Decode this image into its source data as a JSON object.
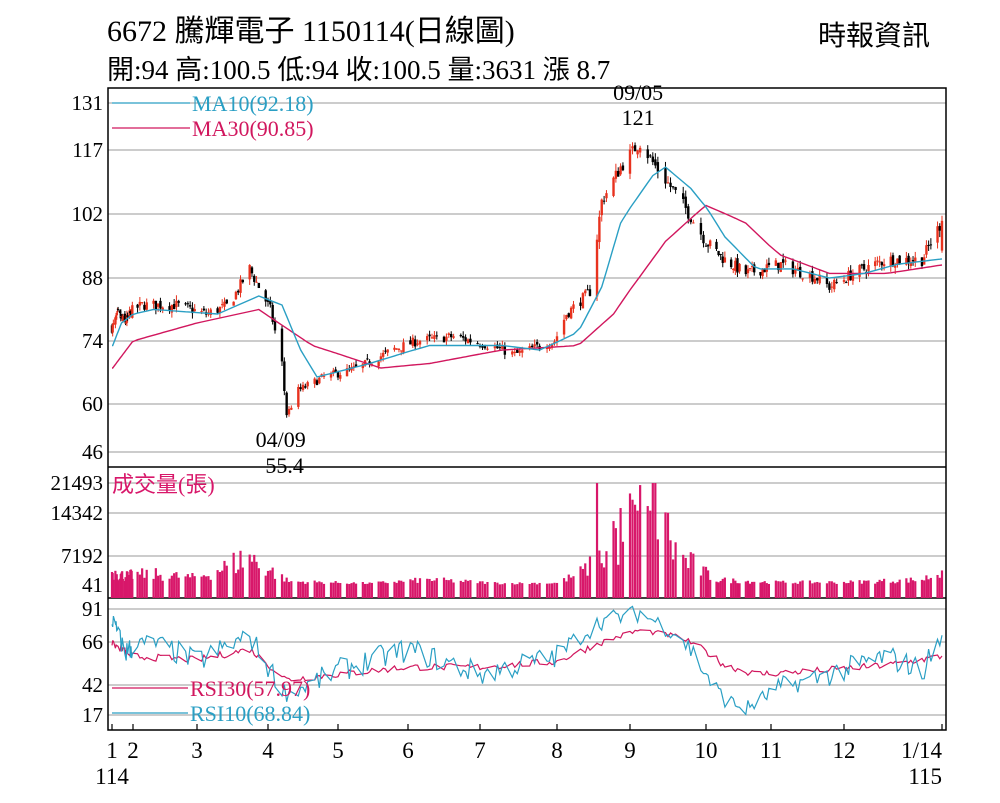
{
  "header": {
    "title": "6672  騰輝電子 1150114(日線圖)",
    "source": "時報資訊",
    "summary": "開:94 高:100.5 低:94 收:100.5 量:3631 漲 8.7"
  },
  "colors": {
    "up": "#e8321e",
    "down": "#000000",
    "ma10": "#2a9fc4",
    "ma30": "#d1175e",
    "volume": "#d8176a",
    "rsi30": "#d1175e",
    "rsi10": "#2a9fc4",
    "grid": "#999999"
  },
  "chart_data": [
    {
      "type": "candlestick",
      "legend": [
        {
          "name": "MA10(92.18)",
          "color": "ma10"
        },
        {
          "name": "MA30(90.85)",
          "color": "ma30"
        }
      ],
      "y_ticks": [
        "131",
        "117",
        "102",
        "88",
        "74",
        "60",
        "46"
      ],
      "ylim": [
        46,
        131
      ],
      "annotations": [
        {
          "label_date": "09/05",
          "label_value": "121",
          "date": "2025-09-05",
          "value": 121,
          "position": "above"
        },
        {
          "label_date": "04/09",
          "label_value": "55.4",
          "date": "2025-04-09",
          "value": 55.4,
          "position": "below"
        }
      ],
      "price_path": [
        [
          "2025-01-02",
          77
        ],
        [
          "2025-01-10",
          80
        ],
        [
          "2025-01-20",
          78
        ],
        [
          "2025-02-05",
          82
        ],
        [
          "2025-02-20",
          82
        ],
        [
          "2025-03-05",
          80
        ],
        [
          "2025-03-15",
          82
        ],
        [
          "2025-03-24",
          90
        ],
        [
          "2025-04-02",
          81
        ],
        [
          "2025-04-07",
          69
        ],
        [
          "2025-04-09",
          57
        ],
        [
          "2025-04-14",
          63
        ],
        [
          "2025-04-25",
          66
        ],
        [
          "2025-05-10",
          68
        ],
        [
          "2025-05-25",
          72
        ],
        [
          "2025-06-05",
          74
        ],
        [
          "2025-06-20",
          75
        ],
        [
          "2025-07-05",
          73
        ],
        [
          "2025-07-15",
          71
        ],
        [
          "2025-07-31",
          74
        ],
        [
          "2025-08-05",
          80
        ],
        [
          "2025-08-15",
          85
        ],
        [
          "2025-08-20",
          105
        ],
        [
          "2025-08-28",
          113
        ],
        [
          "2025-09-05",
          119
        ],
        [
          "2025-09-10",
          114
        ],
        [
          "2025-09-20",
          106
        ],
        [
          "2025-10-01",
          96
        ],
        [
          "2025-10-10",
          92
        ],
        [
          "2025-10-20",
          89
        ],
        [
          "2025-11-05",
          91
        ],
        [
          "2025-11-20",
          88
        ],
        [
          "2025-11-25",
          86
        ],
        [
          "2025-12-05",
          89
        ],
        [
          "2025-12-20",
          92
        ],
        [
          "2026-01-05",
          92
        ],
        [
          "2026-01-14",
          100.5
        ]
      ],
      "ma10_path": [
        [
          "2025-01-02",
          73
        ],
        [
          "2025-01-15",
          78
        ],
        [
          "2025-02-10",
          81
        ],
        [
          "2025-03-10",
          80
        ],
        [
          "2025-03-28",
          84
        ],
        [
          "2025-04-07",
          82
        ],
        [
          "2025-04-15",
          72
        ],
        [
          "2025-04-22",
          66
        ],
        [
          "2025-05-15",
          69
        ],
        [
          "2025-06-10",
          73
        ],
        [
          "2025-07-10",
          73
        ],
        [
          "2025-07-25",
          72
        ],
        [
          "2025-08-10",
          76
        ],
        [
          "2025-08-20",
          86
        ],
        [
          "2025-08-28",
          100
        ],
        [
          "2025-09-10",
          111
        ],
        [
          "2025-09-15",
          113
        ],
        [
          "2025-09-25",
          108
        ],
        [
          "2025-10-10",
          97
        ],
        [
          "2025-10-25",
          90
        ],
        [
          "2025-11-10",
          90
        ],
        [
          "2025-11-25",
          88
        ],
        [
          "2025-12-10",
          89
        ],
        [
          "2025-12-25",
          91
        ],
        [
          "2026-01-14",
          92.18
        ]
      ],
      "ma30_path": [
        [
          "2025-01-02",
          68
        ],
        [
          "2025-02-01",
          74
        ],
        [
          "2025-03-01",
          78
        ],
        [
          "2025-03-28",
          81
        ],
        [
          "2025-04-20",
          73
        ],
        [
          "2025-05-20",
          68
        ],
        [
          "2025-06-10",
          69
        ],
        [
          "2025-07-10",
          72
        ],
        [
          "2025-08-10",
          73
        ],
        [
          "2025-08-25",
          80
        ],
        [
          "2025-09-15",
          96
        ],
        [
          "2025-10-01",
          104
        ],
        [
          "2025-10-20",
          100
        ],
        [
          "2025-11-05",
          93
        ],
        [
          "2025-11-25",
          89
        ],
        [
          "2025-12-20",
          89
        ],
        [
          "2026-01-14",
          90.85
        ]
      ]
    },
    {
      "type": "bar",
      "legend": [
        {
          "name": "成交量(張)",
          "color": "volume"
        }
      ],
      "y_ticks": [
        "21493",
        "14342",
        "7192",
        "41"
      ],
      "ylim": [
        41,
        21493
      ],
      "volume_path": [
        [
          "2025-01-02",
          3500
        ],
        [
          "2025-01-20",
          2500
        ],
        [
          "2025-02-10",
          3000
        ],
        [
          "2025-03-01",
          2000
        ],
        [
          "2025-03-24",
          7500
        ],
        [
          "2025-04-10",
          1000
        ],
        [
          "2025-05-15",
          500
        ],
        [
          "2025-06-10",
          1500
        ],
        [
          "2025-07-10",
          500
        ],
        [
          "2025-08-01",
          600
        ],
        [
          "2025-08-10",
          3000
        ],
        [
          "2025-08-20",
          7000
        ],
        [
          "2025-09-01",
          14000
        ],
        [
          "2025-09-10",
          17000
        ],
        [
          "2025-09-20",
          8000
        ],
        [
          "2025-10-05",
          1500
        ],
        [
          "2025-11-01",
          800
        ],
        [
          "2025-12-01",
          800
        ],
        [
          "2026-01-05",
          1500
        ],
        [
          "2026-01-14",
          3631
        ]
      ],
      "volume_peaks": [
        [
          "2025-08-18",
          21493
        ],
        [
          "2025-09-01",
          19000
        ],
        [
          "2025-09-05",
          21000
        ],
        [
          "2025-09-11",
          21493
        ],
        [
          "2025-08-25",
          13000
        ],
        [
          "2025-09-08",
          16000
        ],
        [
          "2025-09-15",
          14500
        ]
      ]
    },
    {
      "type": "line",
      "legend": [
        {
          "name": "RSI30(57.97)",
          "color": "rsi30"
        },
        {
          "name": "RSI10(68.84)",
          "color": "rsi10"
        }
      ],
      "y_ticks": [
        "91",
        "66",
        "42",
        "17"
      ],
      "ylim": [
        17,
        91
      ],
      "rsi30_path": [
        [
          "2025-01-02",
          65
        ],
        [
          "2025-02-01",
          58
        ],
        [
          "2025-03-01",
          56
        ],
        [
          "2025-03-24",
          62
        ],
        [
          "2025-04-09",
          45
        ],
        [
          "2025-05-01",
          48
        ],
        [
          "2025-06-01",
          52
        ],
        [
          "2025-07-01",
          52
        ],
        [
          "2025-08-01",
          55
        ],
        [
          "2025-08-20",
          66
        ],
        [
          "2025-09-05",
          75
        ],
        [
          "2025-09-20",
          70
        ],
        [
          "2025-10-10",
          53
        ],
        [
          "2025-10-25",
          48
        ],
        [
          "2025-11-20",
          50
        ],
        [
          "2025-12-20",
          53
        ],
        [
          "2026-01-14",
          57.97
        ]
      ],
      "rsi10_path": [
        [
          "2025-01-02",
          82
        ],
        [
          "2025-01-20",
          60
        ],
        [
          "2025-02-10",
          66
        ],
        [
          "2025-03-01",
          55
        ],
        [
          "2025-03-24",
          70
        ],
        [
          "2025-04-09",
          35
        ],
        [
          "2025-05-01",
          50
        ],
        [
          "2025-06-01",
          62
        ],
        [
          "2025-07-01",
          48
        ],
        [
          "2025-08-01",
          58
        ],
        [
          "2025-08-20",
          82
        ],
        [
          "2025-09-05",
          88
        ],
        [
          "2025-09-20",
          72
        ],
        [
          "2025-10-10",
          30
        ],
        [
          "2025-10-20",
          22
        ],
        [
          "2025-11-05",
          40
        ],
        [
          "2025-11-25",
          48
        ],
        [
          "2025-12-20",
          58
        ],
        [
          "2026-01-05",
          50
        ],
        [
          "2026-01-14",
          68.84
        ]
      ]
    }
  ],
  "x_axis": {
    "start": "2025-01-01",
    "end": "2026-01-14",
    "ticks": [
      {
        "label": "1",
        "date": "2025-01-01"
      },
      {
        "label": "2",
        "date": "2025-02-01"
      },
      {
        "label": "3",
        "date": "2025-03-01"
      },
      {
        "label": "4",
        "date": "2025-04-01"
      },
      {
        "label": "5",
        "date": "2025-05-01"
      },
      {
        "label": "6",
        "date": "2025-06-01"
      },
      {
        "label": "7",
        "date": "2025-07-01"
      },
      {
        "label": "8",
        "date": "2025-08-01"
      },
      {
        "label": "9",
        "date": "2025-09-01"
      },
      {
        "label": "10",
        "date": "2025-10-01"
      },
      {
        "label": "11",
        "date": "2025-11-01"
      },
      {
        "label": "12",
        "date": "2025-12-01"
      },
      {
        "label": "1/14",
        "date": "2026-01-14"
      }
    ],
    "year_labels": [
      {
        "label": "114",
        "date": "2025-01-01"
      },
      {
        "label": "115",
        "date": "2026-01-14"
      }
    ]
  }
}
